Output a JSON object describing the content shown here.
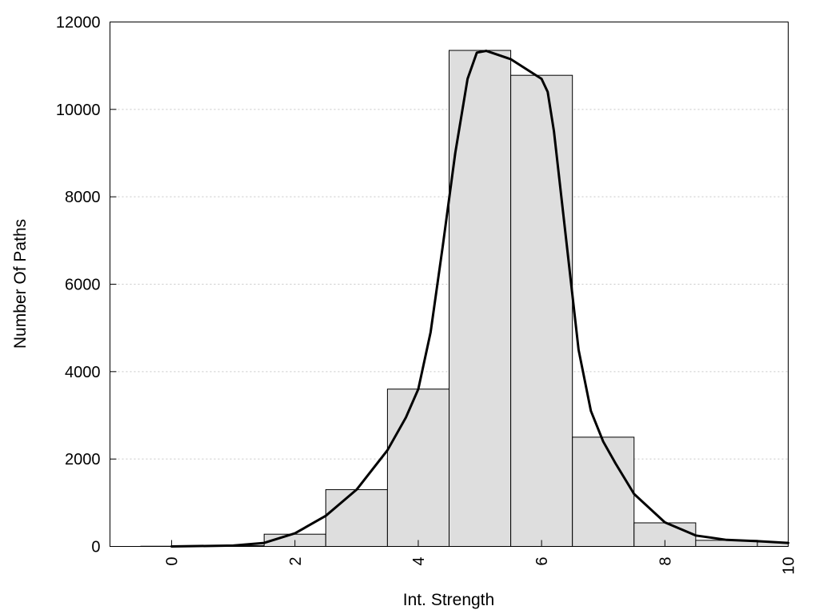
{
  "chart_data": {
    "type": "bar",
    "title": "",
    "xlabel": "Int. Strength",
    "ylabel": "Number Of Paths",
    "xlim": [
      -1,
      10
    ],
    "ylim": [
      0,
      12000
    ],
    "xticks": [
      0,
      2,
      4,
      6,
      8,
      10
    ],
    "xtick_labels": [
      "0",
      "2",
      "4",
      "6",
      "8",
      "10"
    ],
    "yticks": [
      0,
      2000,
      4000,
      6000,
      8000,
      10000,
      12000
    ],
    "ytick_labels": [
      "0",
      "2000",
      "4000",
      "6000",
      "8000",
      "10000",
      "12000"
    ],
    "grid": "horizontal-dotted",
    "bar_color": "#dedede",
    "bin_width": 1,
    "bars": [
      {
        "x": 0,
        "value": 5
      },
      {
        "x": 1,
        "value": 20
      },
      {
        "x": 2,
        "value": 280
      },
      {
        "x": 3,
        "value": 1300
      },
      {
        "x": 4,
        "value": 3600
      },
      {
        "x": 5,
        "value": 11350
      },
      {
        "x": 6,
        "value": 10780
      },
      {
        "x": 7,
        "value": 2500
      },
      {
        "x": 8,
        "value": 540
      },
      {
        "x": 9,
        "value": 140
      },
      {
        "x": 10,
        "value": 100
      }
    ],
    "curve": {
      "x": [
        0,
        1,
        1.5,
        2,
        2.5,
        3,
        3.5,
        3.8,
        4,
        4.2,
        4.4,
        4.6,
        4.8,
        4.95,
        5.1,
        5.5,
        6,
        6.1,
        6.2,
        6.4,
        6.6,
        6.8,
        7,
        7.2,
        7.5,
        8,
        8.5,
        9,
        9.5,
        10
      ],
      "y": [
        0,
        20,
        80,
        300,
        700,
        1300,
        2200,
        2950,
        3600,
        4900,
        6900,
        9000,
        10700,
        11300,
        11340,
        11150,
        10700,
        10400,
        9500,
        7000,
        4500,
        3100,
        2400,
        1900,
        1200,
        550,
        250,
        150,
        120,
        80
      ]
    }
  }
}
